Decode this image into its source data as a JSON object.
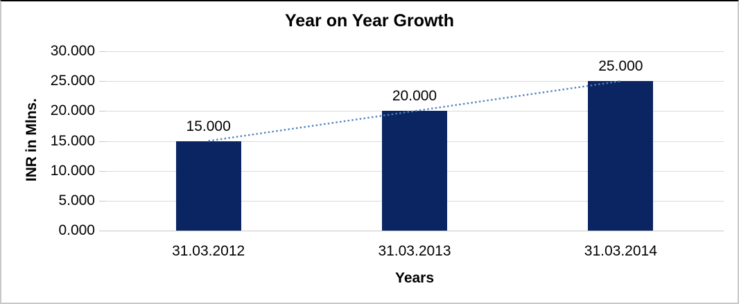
{
  "frame": {
    "background": "#ffffff",
    "border_top_color": "#000000",
    "border_side_color": "#c8c8c8"
  },
  "chart_data": {
    "type": "bar",
    "title": "Year on Year Growth",
    "categories": [
      "31.03.2012",
      "31.03.2013",
      "31.03.2014"
    ],
    "series": [
      {
        "name": "INR in Mlns.",
        "values": [
          15000,
          20000,
          25000
        ],
        "value_labels": [
          "15.000",
          "20.000",
          "25.000"
        ]
      }
    ],
    "trendline": {
      "type": "linear",
      "style": "dotted",
      "color": "#4f81bd",
      "through_values": [
        15000,
        20000,
        25000
      ]
    },
    "xlabel": "Years",
    "ylabel": "INR in Mlns.",
    "ylim": [
      0,
      30000
    ],
    "y_tick_step": 5000,
    "y_tick_labels": [
      "0.000",
      "5.000",
      "10.000",
      "15.000",
      "20.000",
      "25.000",
      "30.000"
    ],
    "grid": "horizontal",
    "legend": "none",
    "colors": {
      "bar": "#0b2563",
      "trendline": "#4f81bd",
      "gridline": "#d9d9d9",
      "axis_line": "#c6c6c6",
      "text": "#000000"
    }
  }
}
